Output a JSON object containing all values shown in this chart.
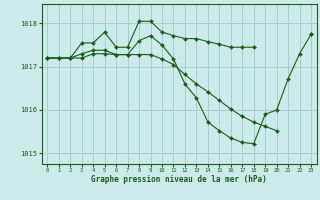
{
  "title": "Graphe pression niveau de la mer (hPa)",
  "bg_color": "#cceaea",
  "line_color": "#1a5c1a",
  "marker_color": "#1a5c1a",
  "grid_color": "#a0c8c8",
  "axis_color": "#1a5c1a",
  "xlim": [
    -0.5,
    23.5
  ],
  "ylim": [
    1014.75,
    1018.45
  ],
  "xticks": [
    0,
    1,
    2,
    3,
    4,
    5,
    6,
    7,
    8,
    9,
    10,
    11,
    12,
    13,
    14,
    15,
    16,
    17,
    18,
    19,
    20,
    21,
    22,
    23
  ],
  "yticks": [
    1015,
    1016,
    1017,
    1018
  ],
  "series": [
    [
      1017.2,
      1017.2,
      1017.2,
      1017.55,
      1017.55,
      1017.8,
      1017.45,
      1017.45,
      1018.05,
      1018.05,
      1017.8,
      1017.72,
      1017.65,
      1017.65,
      1017.58,
      1017.52,
      1017.45,
      1017.45,
      1017.45,
      null,
      null,
      null,
      null,
      1017.75
    ],
    [
      1017.2,
      1017.2,
      1017.2,
      1017.3,
      1017.38,
      1017.38,
      1017.28,
      1017.28,
      1017.6,
      1017.72,
      1017.5,
      1017.18,
      1016.6,
      1016.28,
      1015.72,
      1015.52,
      1015.35,
      1015.25,
      1015.22,
      1015.9,
      1016.0,
      1016.72,
      1017.3,
      1017.75
    ],
    [
      1017.2,
      1017.2,
      1017.2,
      1017.2,
      1017.3,
      1017.3,
      1017.28,
      1017.28,
      1017.28,
      1017.28,
      1017.18,
      1017.05,
      1016.82,
      1016.6,
      1016.42,
      1016.22,
      1016.02,
      1015.85,
      1015.72,
      1015.62,
      1015.52,
      null,
      null,
      null
    ]
  ]
}
